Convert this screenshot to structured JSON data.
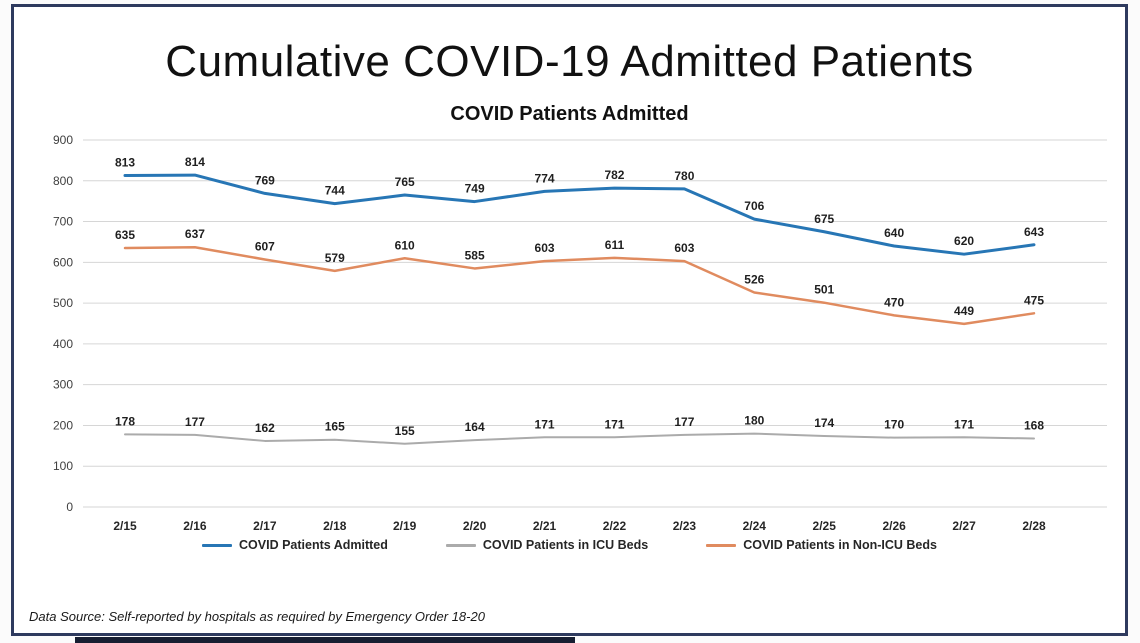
{
  "page": {
    "title": "Cumulative COVID-19 Admitted Patients",
    "footer": "Data Source: Self-reported by hospitals as required by Emergency Order 18-20"
  },
  "colors": {
    "frame_border": "#2e3a5e",
    "gridline": "#d6d6d6",
    "axis_text": "#404040",
    "data_label_text": "#1f1f1f"
  },
  "chart_data": {
    "type": "line",
    "title": "COVID Patients Admitted",
    "categories": [
      "2/15",
      "2/16",
      "2/17",
      "2/18",
      "2/19",
      "2/20",
      "2/21",
      "2/22",
      "2/23",
      "2/24",
      "2/25",
      "2/26",
      "2/27",
      "2/28"
    ],
    "series": [
      {
        "name": "COVID Patients Admitted",
        "color": "#2776b5",
        "stroke_width": 3,
        "values": [
          813,
          814,
          769,
          744,
          765,
          749,
          774,
          782,
          780,
          706,
          675,
          640,
          620,
          643
        ]
      },
      {
        "name": "COVID Patients in ICU Beds",
        "color": "#ababab",
        "stroke_width": 2,
        "values": [
          178,
          177,
          162,
          165,
          155,
          164,
          171,
          171,
          177,
          180,
          174,
          170,
          171,
          168
        ]
      },
      {
        "name": "COVID Patients in Non-ICU Beds",
        "color": "#e08b5f",
        "stroke_width": 2.5,
        "values": [
          635,
          637,
          607,
          579,
          610,
          585,
          603,
          611,
          603,
          526,
          501,
          470,
          449,
          475
        ]
      }
    ],
    "ylim": [
      0,
      900
    ],
    "ytick_step": 100,
    "grid": true,
    "data_labels": true,
    "legend_position": "bottom"
  }
}
